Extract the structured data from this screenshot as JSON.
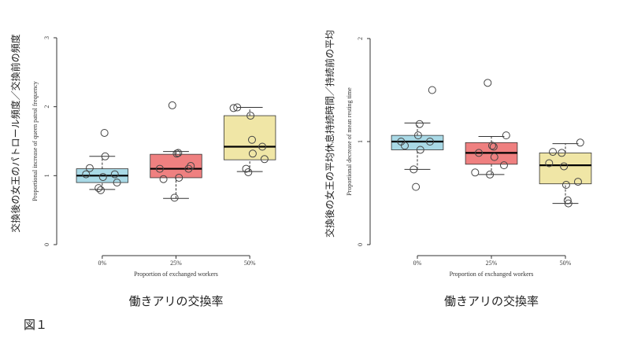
{
  "chart_data": [
    {
      "type": "box",
      "ylabel": "交換後の女王のパトロール頻度／交換前の頻度",
      "ylabel_en": "Proportional increase of queen patrol frequency",
      "xlabel": "Proportion of exchanged workers",
      "xlabel_ja": "働きアリの交換率",
      "categories": [
        "0%",
        "25%",
        "50%"
      ],
      "colors": [
        "#a9d9e6",
        "#ef8080",
        "#f0e6a6"
      ],
      "whisker_low": [
        0.8,
        0.67,
        1.06
      ],
      "q1": [
        0.9,
        0.97,
        1.23
      ],
      "median": [
        1.0,
        1.1,
        1.42
      ],
      "q3": [
        1.1,
        1.31,
        1.87
      ],
      "whisker_high": [
        1.28,
        1.35,
        1.99
      ],
      "points": [
        [
          1.02,
          1.11,
          0.98,
          1.62,
          1.28,
          1.02,
          0.9,
          0.82,
          0.79
        ],
        [
          1.1,
          0.95,
          1.32,
          1.33,
          0.97,
          1.1,
          1.14,
          2.02,
          0.68
        ],
        [
          1.98,
          1.99,
          1.87,
          1.52,
          1.32,
          1.42,
          1.24,
          1.1,
          1.05
        ]
      ],
      "ylim": [
        0,
        3
      ],
      "yticks": [
        0,
        1,
        2,
        3
      ]
    },
    {
      "type": "box",
      "ylabel": "交換後の女王の平均休息持続時間／持続前の平均",
      "ylabel_en": "Proportional decrease of mean resting time",
      "xlabel": "Proportion of exchanged workers",
      "xlabel_ja": "働きアリの交換率",
      "categories": [
        "0%",
        "25%",
        "50%"
      ],
      "colors": [
        "#a9d9e6",
        "#ef8080",
        "#f0e6a6"
      ],
      "whisker_low": [
        0.73,
        0.68,
        0.4
      ],
      "q1": [
        0.92,
        0.78,
        0.59
      ],
      "median": [
        1.0,
        0.89,
        0.77
      ],
      "q3": [
        1.06,
        0.99,
        0.89
      ],
      "whisker_high": [
        1.18,
        1.05,
        0.98
      ],
      "points": [
        [
          1.0,
          0.96,
          1.06,
          1.17,
          0.92,
          1.0,
          1.5,
          0.73,
          0.56
        ],
        [
          0.7,
          0.89,
          0.96,
          0.95,
          0.85,
          0.77,
          1.06,
          1.57,
          0.68
        ],
        [
          0.79,
          0.9,
          0.58,
          0.43,
          0.4,
          0.61,
          0.99,
          0.89,
          0.76
        ]
      ],
      "ylim": [
        0,
        2
      ],
      "yticks": [
        0,
        1,
        2
      ]
    }
  ],
  "caption": "図１"
}
